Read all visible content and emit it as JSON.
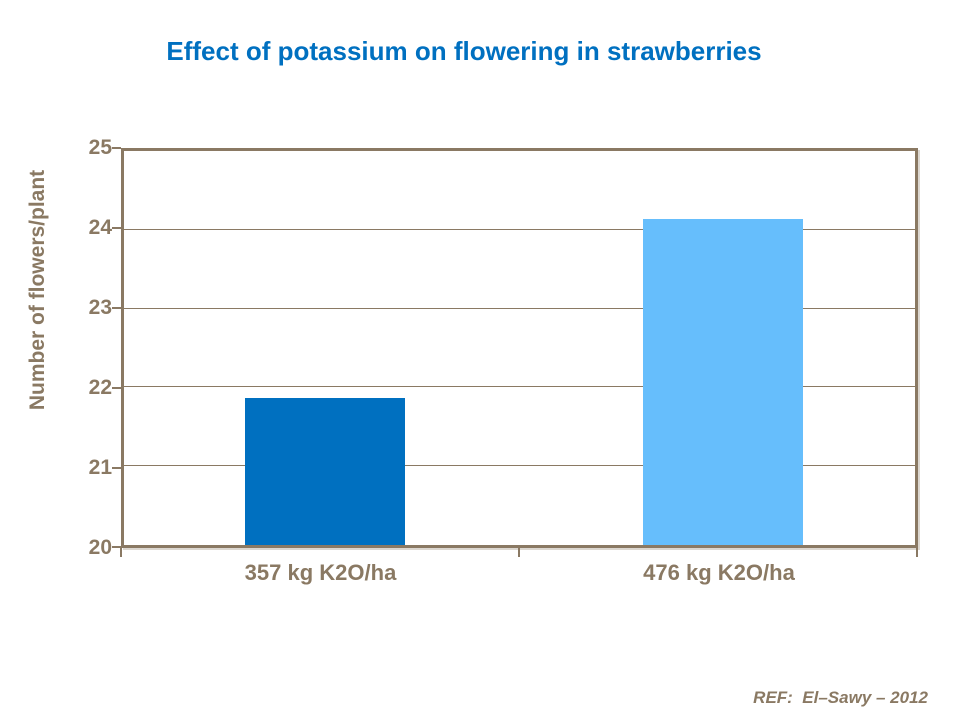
{
  "page": {
    "title": "Effect of potassium on flowering in strawberries",
    "title_color": "#0070C0",
    "ref_note": "REF:  El–Sawy – 2012",
    "text_color": "#8A7963"
  },
  "chart_data": {
    "type": "bar",
    "title": "Effect of potassium on flowering in strawberries",
    "categories": [
      "357 kg K2O/ha",
      "476 kg K2O/ha"
    ],
    "values": [
      21.86,
      24.14
    ],
    "bar_colors": [
      "#0070C0",
      "#66BEFC"
    ],
    "xlabel": "",
    "ylabel": "Number of flowers/plant",
    "ylim": [
      20,
      25
    ],
    "yticks": [
      20,
      21,
      22,
      23,
      24,
      25
    ],
    "grid": true,
    "legend": false,
    "axis_color": "#8A7963",
    "annotation": "REF: El–Sawy – 2012"
  }
}
